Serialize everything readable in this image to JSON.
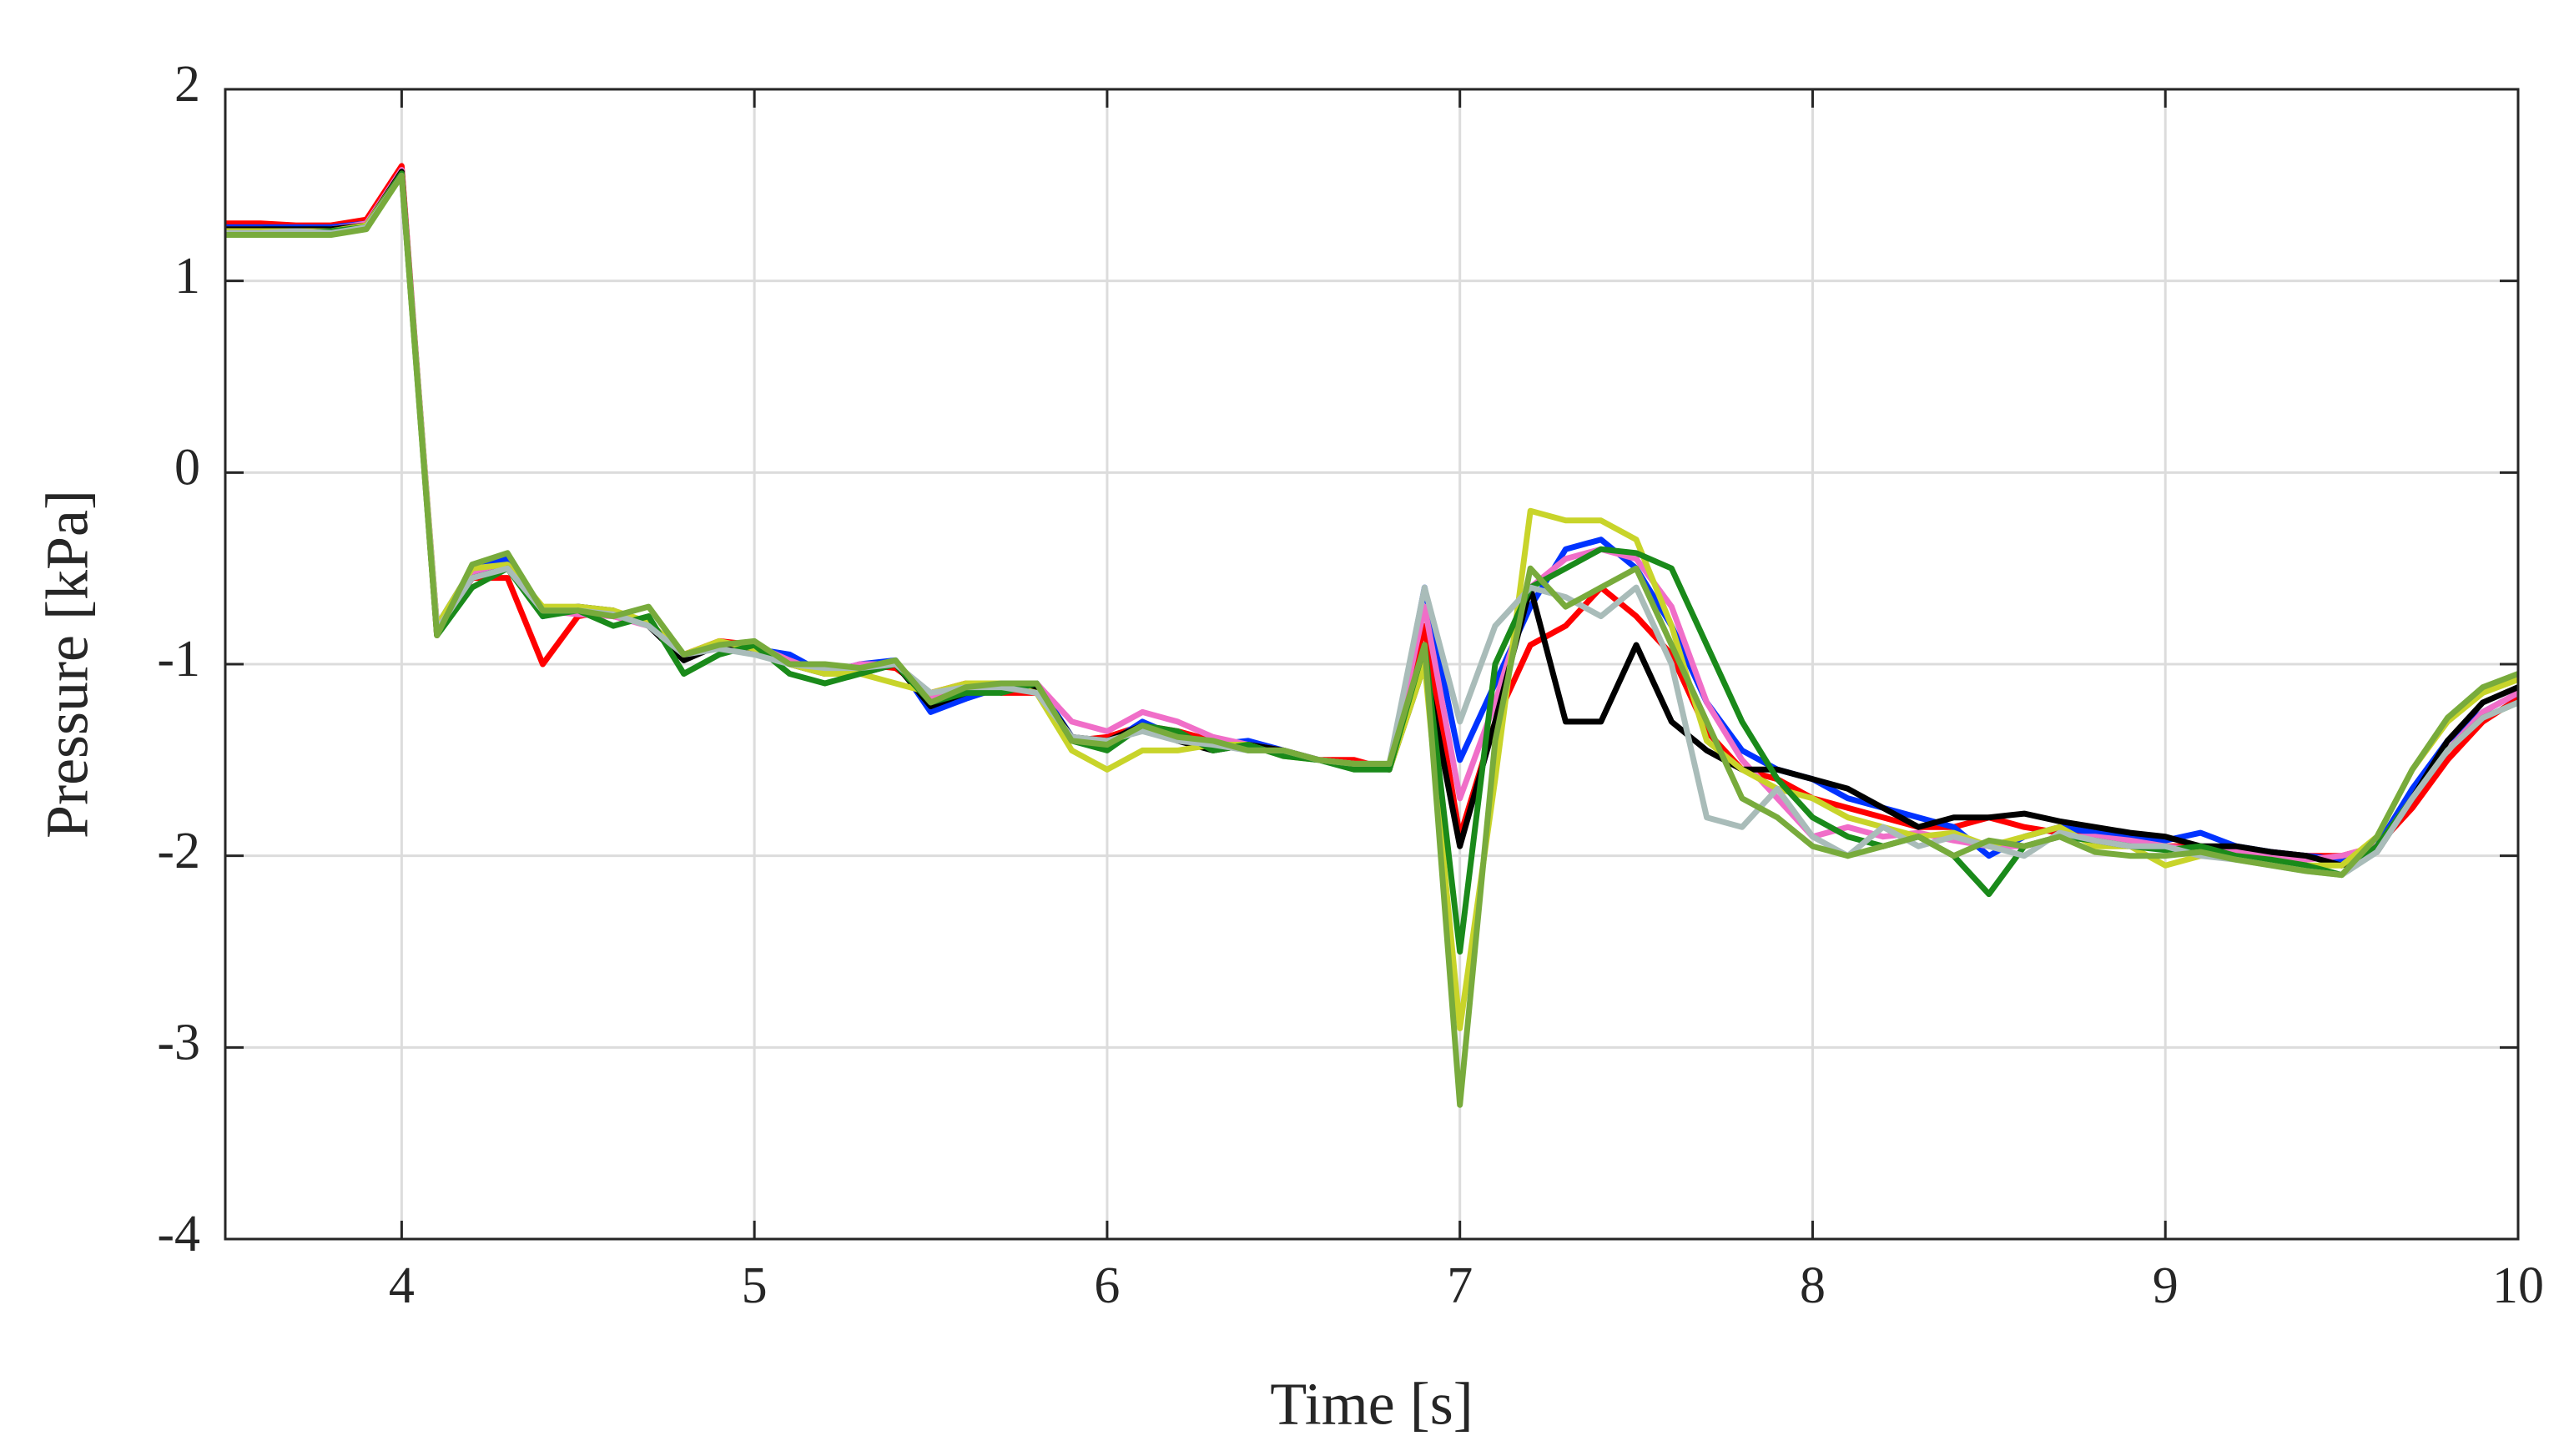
{
  "chart_data": {
    "type": "line",
    "xlabel": "Time [s]",
    "ylabel": "Pressure [kPa]",
    "xlim": [
      3.5,
      10
    ],
    "xticks": [
      4,
      5,
      6,
      7,
      8,
      9,
      10
    ],
    "ylim": [
      -4,
      2
    ],
    "yticks": [
      -4,
      -3,
      -2,
      -1,
      0,
      1,
      2
    ],
    "grid": true,
    "x": [
      3.5,
      3.6,
      3.7,
      3.8,
      3.9,
      4.0,
      4.1,
      4.2,
      4.3,
      4.4,
      4.5,
      4.6,
      4.7,
      4.8,
      4.9,
      5.0,
      5.1,
      5.2,
      5.3,
      5.4,
      5.5,
      5.6,
      5.7,
      5.8,
      5.9,
      6.0,
      6.1,
      6.2,
      6.3,
      6.4,
      6.5,
      6.6,
      6.7,
      6.8,
      6.9,
      7.0,
      7.1,
      7.2,
      7.3,
      7.4,
      7.5,
      7.6,
      7.7,
      7.8,
      7.9,
      8.0,
      8.1,
      8.2,
      8.3,
      8.4,
      8.5,
      8.6,
      8.7,
      8.8,
      8.9,
      9.0,
      9.1,
      9.2,
      9.3,
      9.4,
      9.5,
      9.6,
      9.7,
      9.8,
      9.9,
      10.0
    ],
    "series": [
      {
        "color": "#ff0000",
        "values": [
          1.3,
          1.3,
          1.29,
          1.29,
          1.32,
          1.6,
          -0.85,
          -0.55,
          -0.55,
          -1.0,
          -0.75,
          -0.72,
          -0.8,
          -0.95,
          -0.88,
          -0.9,
          -0.98,
          -1.05,
          -1.0,
          -1.02,
          -1.15,
          -1.1,
          -1.15,
          -1.15,
          -1.4,
          -1.38,
          -1.32,
          -1.35,
          -1.4,
          -1.42,
          -1.45,
          -1.5,
          -1.5,
          -1.55,
          -0.8,
          -1.9,
          -1.3,
          -0.9,
          -0.8,
          -0.6,
          -0.75,
          -0.95,
          -1.35,
          -1.55,
          -1.6,
          -1.7,
          -1.75,
          -1.8,
          -1.85,
          -1.85,
          -1.8,
          -1.85,
          -1.88,
          -1.9,
          -1.92,
          -1.95,
          -1.95,
          -1.98,
          -1.98,
          -2.0,
          -2.0,
          -1.95,
          -1.75,
          -1.5,
          -1.3,
          -1.18
        ]
      },
      {
        "color": "#0033ff",
        "values": [
          1.28,
          1.28,
          1.28,
          1.28,
          1.3,
          1.55,
          -0.8,
          -0.5,
          -0.45,
          -0.75,
          -0.7,
          -0.75,
          -0.78,
          -0.95,
          -0.9,
          -0.92,
          -0.95,
          -1.05,
          -1.0,
          -0.98,
          -1.25,
          -1.18,
          -1.12,
          -1.1,
          -1.38,
          -1.42,
          -1.3,
          -1.38,
          -1.42,
          -1.4,
          -1.45,
          -1.5,
          -1.52,
          -1.55,
          -0.6,
          -1.5,
          -1.1,
          -0.7,
          -0.4,
          -0.35,
          -0.5,
          -0.8,
          -1.2,
          -1.45,
          -1.55,
          -1.6,
          -1.7,
          -1.75,
          -1.8,
          -1.85,
          -2.0,
          -1.9,
          -1.85,
          -1.88,
          -1.9,
          -1.92,
          -1.88,
          -1.95,
          -1.98,
          -2.0,
          -2.02,
          -1.95,
          -1.65,
          -1.4,
          -1.25,
          -1.15
        ]
      },
      {
        "color": "#f06ec8",
        "values": [
          1.27,
          1.27,
          1.26,
          1.27,
          1.3,
          1.58,
          -0.8,
          -0.52,
          -0.5,
          -0.72,
          -0.74,
          -0.75,
          -0.8,
          -0.96,
          -0.9,
          -0.9,
          -0.98,
          -1.05,
          -1.0,
          -1.0,
          -1.18,
          -1.12,
          -1.1,
          -1.1,
          -1.3,
          -1.35,
          -1.25,
          -1.3,
          -1.38,
          -1.42,
          -1.45,
          -1.5,
          -1.52,
          -1.55,
          -0.7,
          -1.7,
          -1.2,
          -0.6,
          -0.45,
          -0.4,
          -0.45,
          -0.7,
          -1.2,
          -1.5,
          -1.7,
          -1.9,
          -1.85,
          -1.9,
          -1.88,
          -1.92,
          -1.95,
          -1.95,
          -1.9,
          -1.9,
          -1.92,
          -1.95,
          -1.97,
          -1.97,
          -2.0,
          -2.02,
          -2.0,
          -1.95,
          -1.7,
          -1.45,
          -1.25,
          -1.15
        ]
      },
      {
        "color": "#000000",
        "values": [
          1.27,
          1.27,
          1.27,
          1.27,
          1.29,
          1.57,
          -0.82,
          -0.55,
          -0.5,
          -0.72,
          -0.7,
          -0.72,
          -0.8,
          -0.98,
          -0.9,
          -0.92,
          -1.0,
          -1.05,
          -1.05,
          -1.0,
          -1.22,
          -1.15,
          -1.12,
          -1.12,
          -1.38,
          -1.4,
          -1.32,
          -1.4,
          -1.45,
          -1.42,
          -1.45,
          -1.5,
          -1.52,
          -1.55,
          -1.0,
          -1.95,
          -1.3,
          -0.6,
          -1.3,
          -1.3,
          -0.9,
          -1.3,
          -1.45,
          -1.55,
          -1.55,
          -1.6,
          -1.65,
          -1.75,
          -1.85,
          -1.8,
          -1.8,
          -1.78,
          -1.82,
          -1.85,
          -1.88,
          -1.9,
          -1.95,
          -1.95,
          -1.98,
          -2.0,
          -2.05,
          -1.98,
          -1.7,
          -1.4,
          -1.2,
          -1.12
        ]
      },
      {
        "color": "#c8d42a",
        "values": [
          1.26,
          1.26,
          1.26,
          1.26,
          1.29,
          1.56,
          -0.8,
          -0.5,
          -0.48,
          -0.7,
          -0.7,
          -0.72,
          -0.78,
          -0.95,
          -0.88,
          -0.92,
          -1.0,
          -1.05,
          -1.05,
          -1.1,
          -1.15,
          -1.1,
          -1.1,
          -1.15,
          -1.45,
          -1.55,
          -1.45,
          -1.45,
          -1.42,
          -1.42,
          -1.48,
          -1.5,
          -1.52,
          -1.55,
          -1.0,
          -2.9,
          -1.6,
          -0.2,
          -0.25,
          -0.25,
          -0.35,
          -0.8,
          -1.4,
          -1.55,
          -1.65,
          -1.7,
          -1.8,
          -1.85,
          -1.9,
          -1.88,
          -1.95,
          -1.9,
          -1.85,
          -1.95,
          -1.95,
          -2.05,
          -2.0,
          -2.0,
          -2.02,
          -2.05,
          -2.05,
          -1.9,
          -1.55,
          -1.3,
          -1.15,
          -1.08
        ]
      },
      {
        "color": "#1a8a1a",
        "values": [
          1.25,
          1.25,
          1.25,
          1.26,
          1.28,
          1.56,
          -0.85,
          -0.6,
          -0.5,
          -0.75,
          -0.72,
          -0.8,
          -0.75,
          -1.05,
          -0.95,
          -0.9,
          -1.05,
          -1.1,
          -1.05,
          -1.0,
          -1.2,
          -1.15,
          -1.15,
          -1.1,
          -1.4,
          -1.45,
          -1.32,
          -1.35,
          -1.45,
          -1.42,
          -1.48,
          -1.5,
          -1.55,
          -1.55,
          -0.9,
          -2.5,
          -1.0,
          -0.6,
          -0.5,
          -0.4,
          -0.42,
          -0.5,
          -0.9,
          -1.3,
          -1.6,
          -1.8,
          -1.9,
          -1.95,
          -1.9,
          -2.0,
          -2.2,
          -1.95,
          -1.9,
          -1.92,
          -1.95,
          -1.97,
          -1.95,
          -2.0,
          -2.02,
          -2.05,
          -2.1,
          -1.95,
          -1.7,
          -1.45,
          -1.28,
          -1.2
        ]
      },
      {
        "color": "#a9bcb9",
        "values": [
          1.25,
          1.25,
          1.26,
          1.25,
          1.28,
          1.55,
          -0.82,
          -0.55,
          -0.5,
          -0.72,
          -0.72,
          -0.74,
          -0.8,
          -0.95,
          -0.92,
          -0.95,
          -1.0,
          -1.02,
          -1.02,
          -1.0,
          -1.15,
          -1.12,
          -1.12,
          -1.15,
          -1.38,
          -1.4,
          -1.35,
          -1.4,
          -1.42,
          -1.45,
          -1.45,
          -1.5,
          -1.52,
          -1.52,
          -0.6,
          -1.3,
          -0.8,
          -0.6,
          -0.65,
          -0.75,
          -0.6,
          -1.0,
          -1.8,
          -1.85,
          -1.65,
          -1.9,
          -2.0,
          -1.85,
          -1.95,
          -1.9,
          -1.95,
          -2.0,
          -1.88,
          -1.92,
          -1.95,
          -1.95,
          -2.0,
          -2.02,
          -2.05,
          -2.08,
          -2.1,
          -1.98,
          -1.7,
          -1.45,
          -1.28,
          -1.2
        ]
      },
      {
        "color": "#78ab3c",
        "values": [
          1.24,
          1.24,
          1.24,
          1.24,
          1.27,
          1.55,
          -0.85,
          -0.48,
          -0.42,
          -0.72,
          -0.72,
          -0.75,
          -0.7,
          -0.95,
          -0.9,
          -0.88,
          -1.0,
          -1.0,
          -1.02,
          -0.98,
          -1.2,
          -1.12,
          -1.1,
          -1.1,
          -1.4,
          -1.42,
          -1.32,
          -1.38,
          -1.4,
          -1.45,
          -1.45,
          -1.5,
          -1.52,
          -1.52,
          -0.9,
          -3.3,
          -1.4,
          -0.5,
          -0.7,
          -0.6,
          -0.5,
          -0.9,
          -1.3,
          -1.7,
          -1.8,
          -1.95,
          -2.0,
          -1.95,
          -1.9,
          -2.0,
          -1.92,
          -1.95,
          -1.9,
          -1.98,
          -2.0,
          -2.0,
          -1.98,
          -2.02,
          -2.05,
          -2.08,
          -2.1,
          -1.9,
          -1.55,
          -1.28,
          -1.12,
          -1.05
        ]
      }
    ]
  }
}
